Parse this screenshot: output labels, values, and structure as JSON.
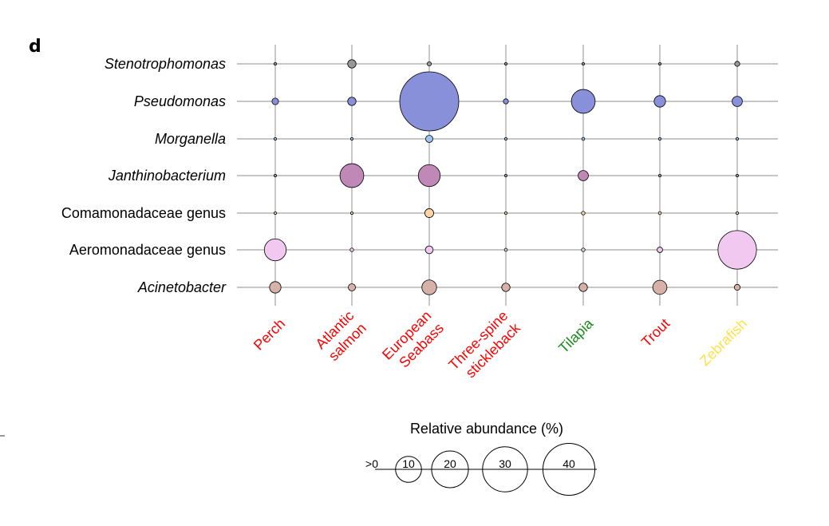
{
  "panel_label": "d",
  "chart_data": {
    "type": "bubble",
    "rows": [
      {
        "label": "Stenotrophomonas",
        "italic": true,
        "color": "#999999"
      },
      {
        "label": "Pseudomonas",
        "italic": true,
        "color": "#8890d9"
      },
      {
        "label": "Morganella",
        "italic": true,
        "color": "#9cc4ef"
      },
      {
        "label": "Janthinobacterium",
        "italic": true,
        "color": "#c088b7"
      },
      {
        "label": "Comamonadaceae genus",
        "italic": false,
        "color": "#fbd5a6"
      },
      {
        "label": "Aeromonadaceae genus",
        "italic": false,
        "color": "#f0c8f0"
      },
      {
        "label": "Acinetobacter",
        "italic": true,
        "color": "#d6b1a8"
      }
    ],
    "columns": [
      {
        "label": [
          "Perch"
        ],
        "color": "#ff0000"
      },
      {
        "label": [
          "Atlantic",
          "salmon"
        ],
        "color": "#ff0000"
      },
      {
        "label": [
          "European",
          "Seabass"
        ],
        "color": "#ff0000"
      },
      {
        "label": [
          "Three-spine",
          "stickleback"
        ],
        "color": "#ff0000"
      },
      {
        "label": [
          "Tilapia"
        ],
        "color": "#1a8a1a"
      },
      {
        "label": [
          "Trout"
        ],
        "color": "#ff0000"
      },
      {
        "label": [
          "Zebrafish"
        ],
        "color": "#ffe04a"
      }
    ],
    "values": [
      [
        0.05,
        0.8,
        0.2,
        0.05,
        0.05,
        0.05,
        0.3
      ],
      [
        0.5,
        0.8,
        40,
        0.3,
        6.5,
        1.5,
        1.2
      ],
      [
        0.02,
        0.02,
        0.6,
        0.02,
        0.1,
        0.05,
        0.02
      ],
      [
        0.05,
        6.5,
        5.5,
        0.05,
        1.2,
        0.02,
        0.02
      ],
      [
        0.02,
        0.02,
        0.9,
        0.02,
        0.15,
        0.1,
        0.02
      ],
      [
        5.5,
        0.15,
        0.7,
        0.1,
        0.15,
        0.35,
        17
      ],
      [
        1.5,
        0.6,
        2.5,
        0.8,
        0.8,
        2.3,
        0.4
      ]
    ],
    "legend": {
      "title": "Relative abundance (%)",
      "zero_label": ">0",
      "sizes": [
        10,
        20,
        30,
        40
      ]
    }
  }
}
